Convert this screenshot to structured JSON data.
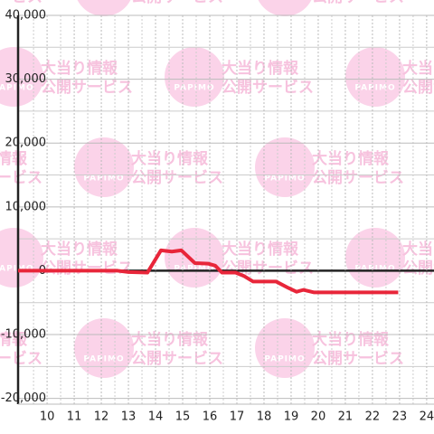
{
  "chart_data": {
    "type": "line",
    "watermark": {
      "line1": "大当り情報",
      "line2": "公開サービス",
      "logo": "PAPIMO"
    },
    "x": [
      8.93,
      12.6,
      13,
      13.7,
      14.2,
      14.6,
      14.95,
      15.45,
      15.95,
      16.2,
      16.45,
      16.95,
      17.25,
      17.6,
      18.45,
      18.9,
      19.2,
      19.45,
      19.85,
      22.95
    ],
    "series": [
      {
        "color": "#e8263a",
        "values": [
          0,
          0,
          -200,
          -300,
          3200,
          3000,
          3200,
          1200,
          1100,
          800,
          -300,
          -300,
          -800,
          -1700,
          -1700,
          -2700,
          -3300,
          -3000,
          -3400,
          -3400
        ]
      }
    ],
    "xlim": [
      8.93,
      24.27
    ],
    "xticks": [
      10,
      11,
      12,
      13,
      14,
      15,
      16,
      17,
      18,
      19,
      20,
      21,
      22,
      23,
      24
    ],
    "xgrid_minor": [
      9.5,
      10.5,
      11.5,
      12.5,
      13.5,
      14.5,
      15.5,
      16.5,
      17.5,
      18.5,
      19.5,
      20.5,
      21.5,
      22.5,
      23.5
    ],
    "ylim": [
      -20900,
      40000
    ],
    "yticks": [
      {
        "value": 40000,
        "label": "40,000"
      },
      {
        "value": 30000,
        "label": "30,000"
      },
      {
        "value": 20000,
        "label": "20,000"
      },
      {
        "value": 10000,
        "label": "10,000"
      },
      0,
      {
        "value": -10000,
        "label": "-10,000"
      },
      {
        "value": -20000,
        "label": "-20,000"
      }
    ],
    "ygrid_minor": [
      35000,
      25000,
      15000,
      5000,
      -5000,
      -15000
    ],
    "grid": true
  }
}
